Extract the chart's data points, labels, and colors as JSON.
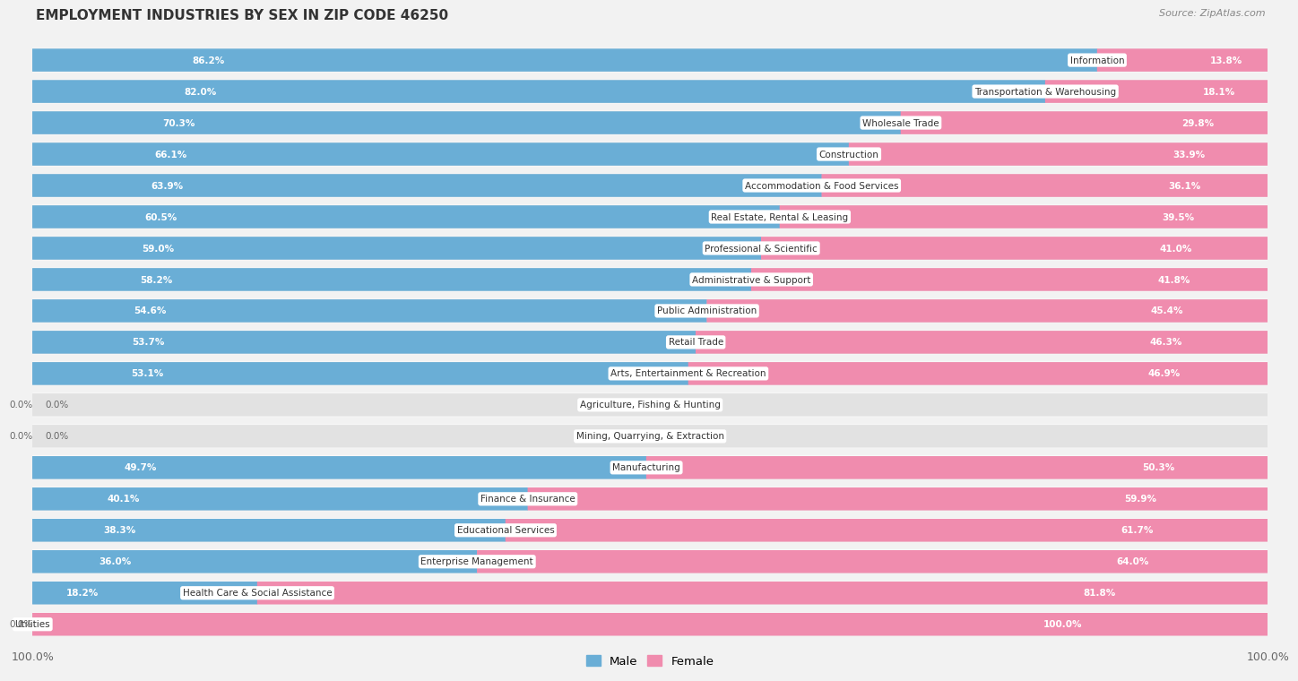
{
  "title": "EMPLOYMENT INDUSTRIES BY SEX IN ZIP CODE 46250",
  "source": "Source: ZipAtlas.com",
  "categories": [
    "Information",
    "Transportation & Warehousing",
    "Wholesale Trade",
    "Construction",
    "Accommodation & Food Services",
    "Real Estate, Rental & Leasing",
    "Professional & Scientific",
    "Administrative & Support",
    "Public Administration",
    "Retail Trade",
    "Arts, Entertainment & Recreation",
    "Agriculture, Fishing & Hunting",
    "Mining, Quarrying, & Extraction",
    "Manufacturing",
    "Finance & Insurance",
    "Educational Services",
    "Enterprise Management",
    "Health Care & Social Assistance",
    "Utilities"
  ],
  "male": [
    86.2,
    82.0,
    70.3,
    66.1,
    63.9,
    60.5,
    59.0,
    58.2,
    54.6,
    53.7,
    53.1,
    0.0,
    0.0,
    49.7,
    40.1,
    38.3,
    36.0,
    18.2,
    0.0
  ],
  "female": [
    13.8,
    18.1,
    29.8,
    33.9,
    36.1,
    39.5,
    41.0,
    41.8,
    45.4,
    46.3,
    46.9,
    0.0,
    0.0,
    50.3,
    59.9,
    61.7,
    64.0,
    81.8,
    100.0
  ],
  "male_color": "#6aaed6",
  "female_color": "#f08cae",
  "bg_color": "#f2f2f2",
  "bar_bg_color": "#e2e2e2",
  "row_bg_color": "#e8e8e8",
  "label_bg_color": "#ffffff"
}
